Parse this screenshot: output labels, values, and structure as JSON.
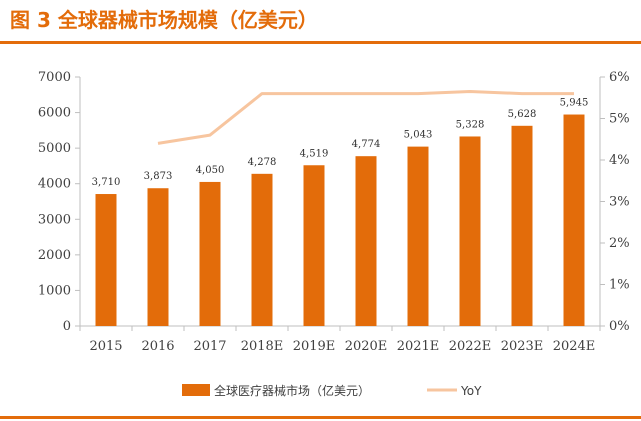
{
  "header": {
    "title": "图 3  全球器械市场规模（亿美元）"
  },
  "colors": {
    "accent": "#e36c0a",
    "bar": "#e36c0a",
    "line": "#f7c59f",
    "axis": "#bfbfbf"
  },
  "chart_data": {
    "type": "bar",
    "categories": [
      "2015",
      "2016",
      "2017",
      "2018E",
      "2019E",
      "2020E",
      "2021E",
      "2022E",
      "2023E",
      "2024E"
    ],
    "series": [
      {
        "name": "全球医疗器械市场（亿美元）",
        "type": "bar",
        "axis": "left",
        "values": [
          3710,
          3873,
          4050,
          4278,
          4519,
          4774,
          5043,
          5328,
          5628,
          5945
        ],
        "labels": [
          "3,710",
          "3,873",
          "4,050",
          "4,278",
          "4,519",
          "4,774",
          "5,043",
          "5,328",
          "5,628",
          "5,945"
        ]
      },
      {
        "name": "YoY",
        "type": "line",
        "axis": "right",
        "values": [
          null,
          4.4,
          4.6,
          5.6,
          5.6,
          5.6,
          5.6,
          5.65,
          5.6,
          5.6
        ]
      }
    ],
    "y_left": {
      "lim": [
        0,
        7000
      ],
      "ticks": [
        0,
        1000,
        2000,
        3000,
        4000,
        5000,
        6000,
        7000
      ],
      "tick_labels": [
        "0",
        "1000",
        "2000",
        "3000",
        "4000",
        "5000",
        "6000",
        "7000"
      ]
    },
    "y_right": {
      "lim": [
        0,
        6
      ],
      "ticks": [
        0,
        1,
        2,
        3,
        4,
        5,
        6
      ],
      "tick_labels": [
        "0%",
        "1%",
        "2%",
        "3%",
        "4%",
        "5%",
        "6%"
      ]
    },
    "grid": false,
    "legend": {
      "placement": "bottom-center",
      "entries": [
        "全球医疗器械市场（亿美元）",
        "YoY"
      ]
    }
  }
}
